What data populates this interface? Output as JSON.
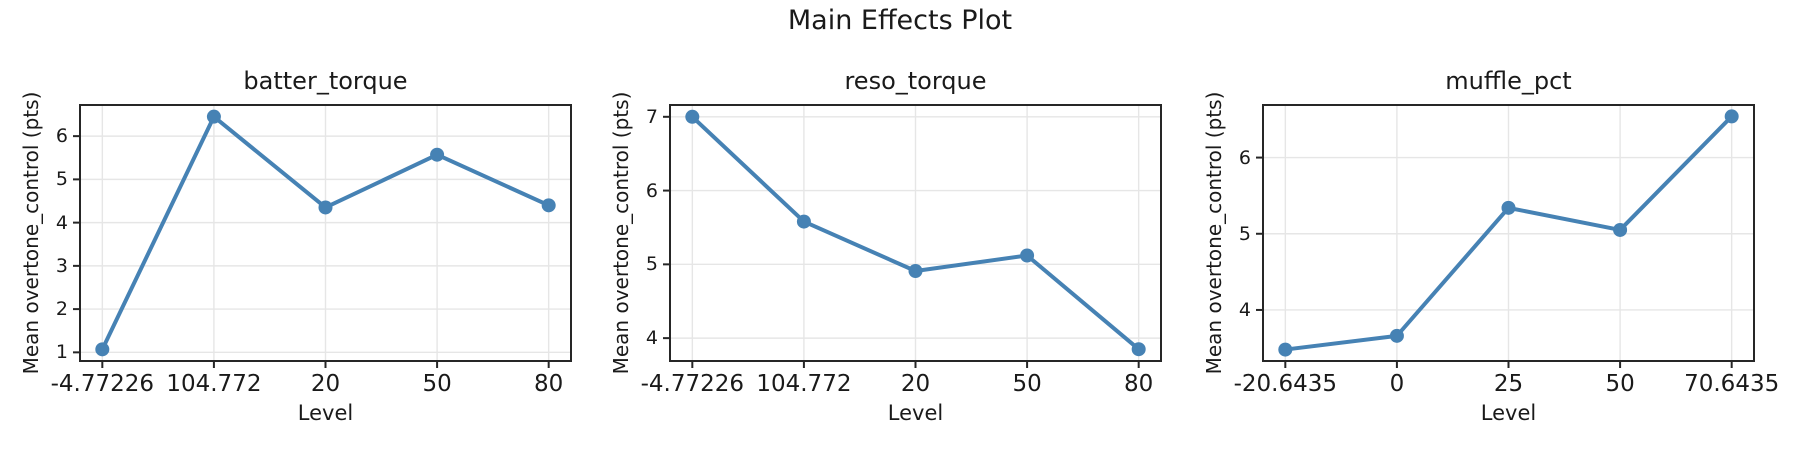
{
  "figure_title": "Main Effects Plot",
  "colors": {
    "line": "#4682b4",
    "marker": "#4682b4",
    "grid": "#e6e6e6",
    "spine": "#262626",
    "tick": "#262626",
    "text": "#1a1a1a",
    "background": "#ffffff"
  },
  "chart_data": [
    {
      "type": "line",
      "title": "batter_torque",
      "xlabel": "Level",
      "ylabel": "Mean overtone_control (pts)",
      "categories": [
        "-4.77226",
        "104.772",
        "20",
        "50",
        "80"
      ],
      "values": [
        1.07,
        6.45,
        4.35,
        5.57,
        4.4
      ],
      "yticks": [
        1,
        2,
        3,
        4,
        5,
        6
      ],
      "ylim": [
        0.8,
        6.72
      ],
      "x_margin": 0.05,
      "grid": true,
      "legend": "none",
      "marker": "circle"
    },
    {
      "type": "line",
      "title": "reso_torque",
      "xlabel": "Level",
      "ylabel": "Mean overtone_control (pts)",
      "categories": [
        "-4.77226",
        "104.772",
        "20",
        "50",
        "80"
      ],
      "values": [
        7.0,
        5.58,
        4.91,
        5.12,
        3.85
      ],
      "yticks": [
        4,
        5,
        6,
        7
      ],
      "ylim": [
        3.69,
        7.16
      ],
      "x_margin": 0.05,
      "grid": true,
      "legend": "none",
      "marker": "circle"
    },
    {
      "type": "line",
      "title": "muffle_pct",
      "xlabel": "Level",
      "ylabel": "Mean overtone_control (pts)",
      "categories": [
        "-20.6435",
        "0",
        "25",
        "50",
        "70.6435"
      ],
      "values": [
        3.48,
        3.66,
        5.34,
        5.05,
        6.54
      ],
      "yticks": [
        4,
        5,
        6
      ],
      "ylim": [
        3.33,
        6.69
      ],
      "x_margin": 0.05,
      "grid": true,
      "legend": "none",
      "marker": "circle"
    }
  ]
}
